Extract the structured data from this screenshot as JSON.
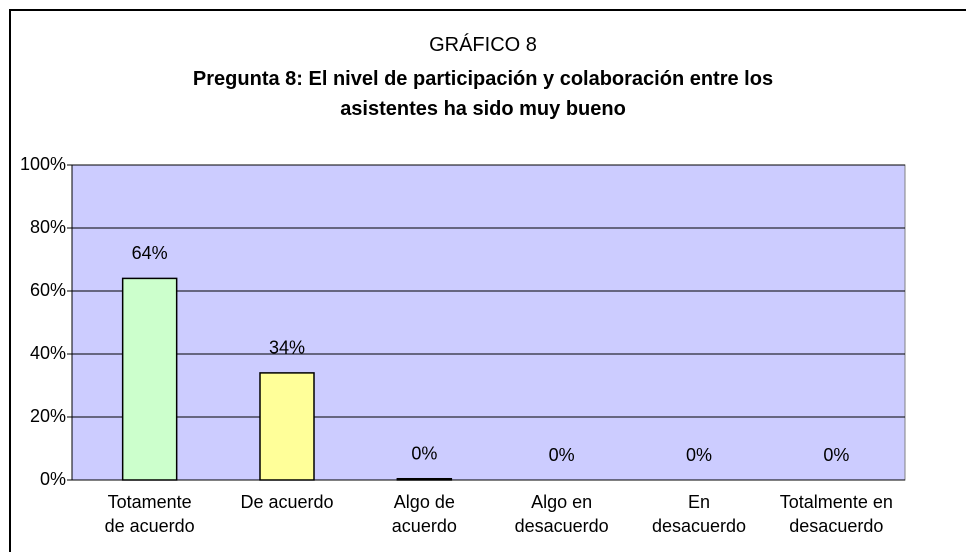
{
  "chart_data": {
    "type": "bar",
    "title": "GRÁFICO 8",
    "subtitle": "Pregunta 8: El nivel de participación y colaboración entre los\nasistentes ha sido muy bueno",
    "categories": [
      "Totamente\nde acuerdo",
      "De acuerdo",
      "Algo de\nacuerdo",
      "Algo en\ndesacuerdo",
      "En\ndesacuerdo",
      "Totalmente en\ndesacuerdo"
    ],
    "values": [
      64,
      34,
      0.4,
      0,
      0,
      0
    ],
    "value_labels": [
      "64%",
      "34%",
      "0%",
      "0%",
      "0%",
      "0%"
    ],
    "colors": [
      "#ccffcc",
      "#ffff99",
      "#ff99cc",
      "#ccccff",
      "#ccccff",
      "#ccccff"
    ],
    "ylim": [
      0,
      100
    ],
    "yticks": [
      {
        "value": 0,
        "label": "0%"
      },
      {
        "value": 20,
        "label": "20%"
      },
      {
        "value": 40,
        "label": "40%"
      },
      {
        "value": 60,
        "label": "60%"
      },
      {
        "value": 80,
        "label": "80%"
      },
      {
        "value": 100,
        "label": "100%"
      }
    ],
    "grid": true,
    "background": "#ccccff"
  }
}
